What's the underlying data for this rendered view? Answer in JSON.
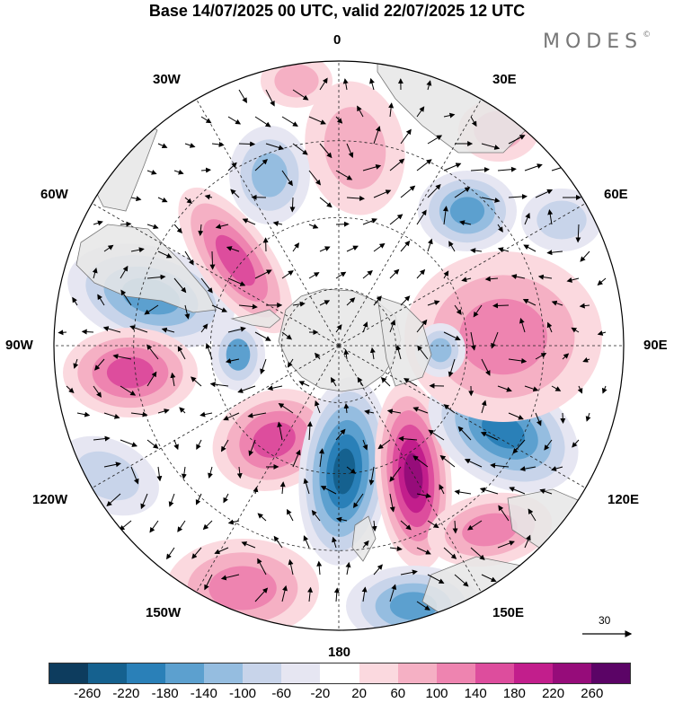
{
  "header": {
    "title": "Base 14/07/2025 00 UTC, valid 22/07/2025 12 UTC",
    "brand": "MODES",
    "brand_mark": "©"
  },
  "map": {
    "projection": "south polar stereographic",
    "longitude_labels": {
      "top": "0",
      "bottom": "180",
      "left": "90W",
      "right": "90E",
      "upper_left_1": "30W",
      "upper_left_2": "60W",
      "upper_right_1": "30E",
      "upper_right_2": "60E",
      "lower_left_1": "120W",
      "lower_left_2": "150W",
      "lower_right_1": "120E",
      "lower_right_2": "150E"
    },
    "reference_vector": "30",
    "colors": {
      "land": "#e6e6e6",
      "coast": "#777777",
      "grid": "#222222"
    }
  },
  "colorbar": {
    "ticks": [
      "-260",
      "-220",
      "-180",
      "-140",
      "-100",
      "-60",
      "-20",
      "20",
      "60",
      "100",
      "140",
      "180",
      "220",
      "260"
    ],
    "colors": [
      "#0d3c5e",
      "#15618f",
      "#2a80b8",
      "#5ca0cf",
      "#95bde0",
      "#c8d4ea",
      "#e6e6f2",
      "#ffffff",
      "#fbd9df",
      "#f5b0c4",
      "#ee84b0",
      "#dd4d9d",
      "#c21e8c",
      "#960c7a",
      "#5b0466"
    ]
  }
}
